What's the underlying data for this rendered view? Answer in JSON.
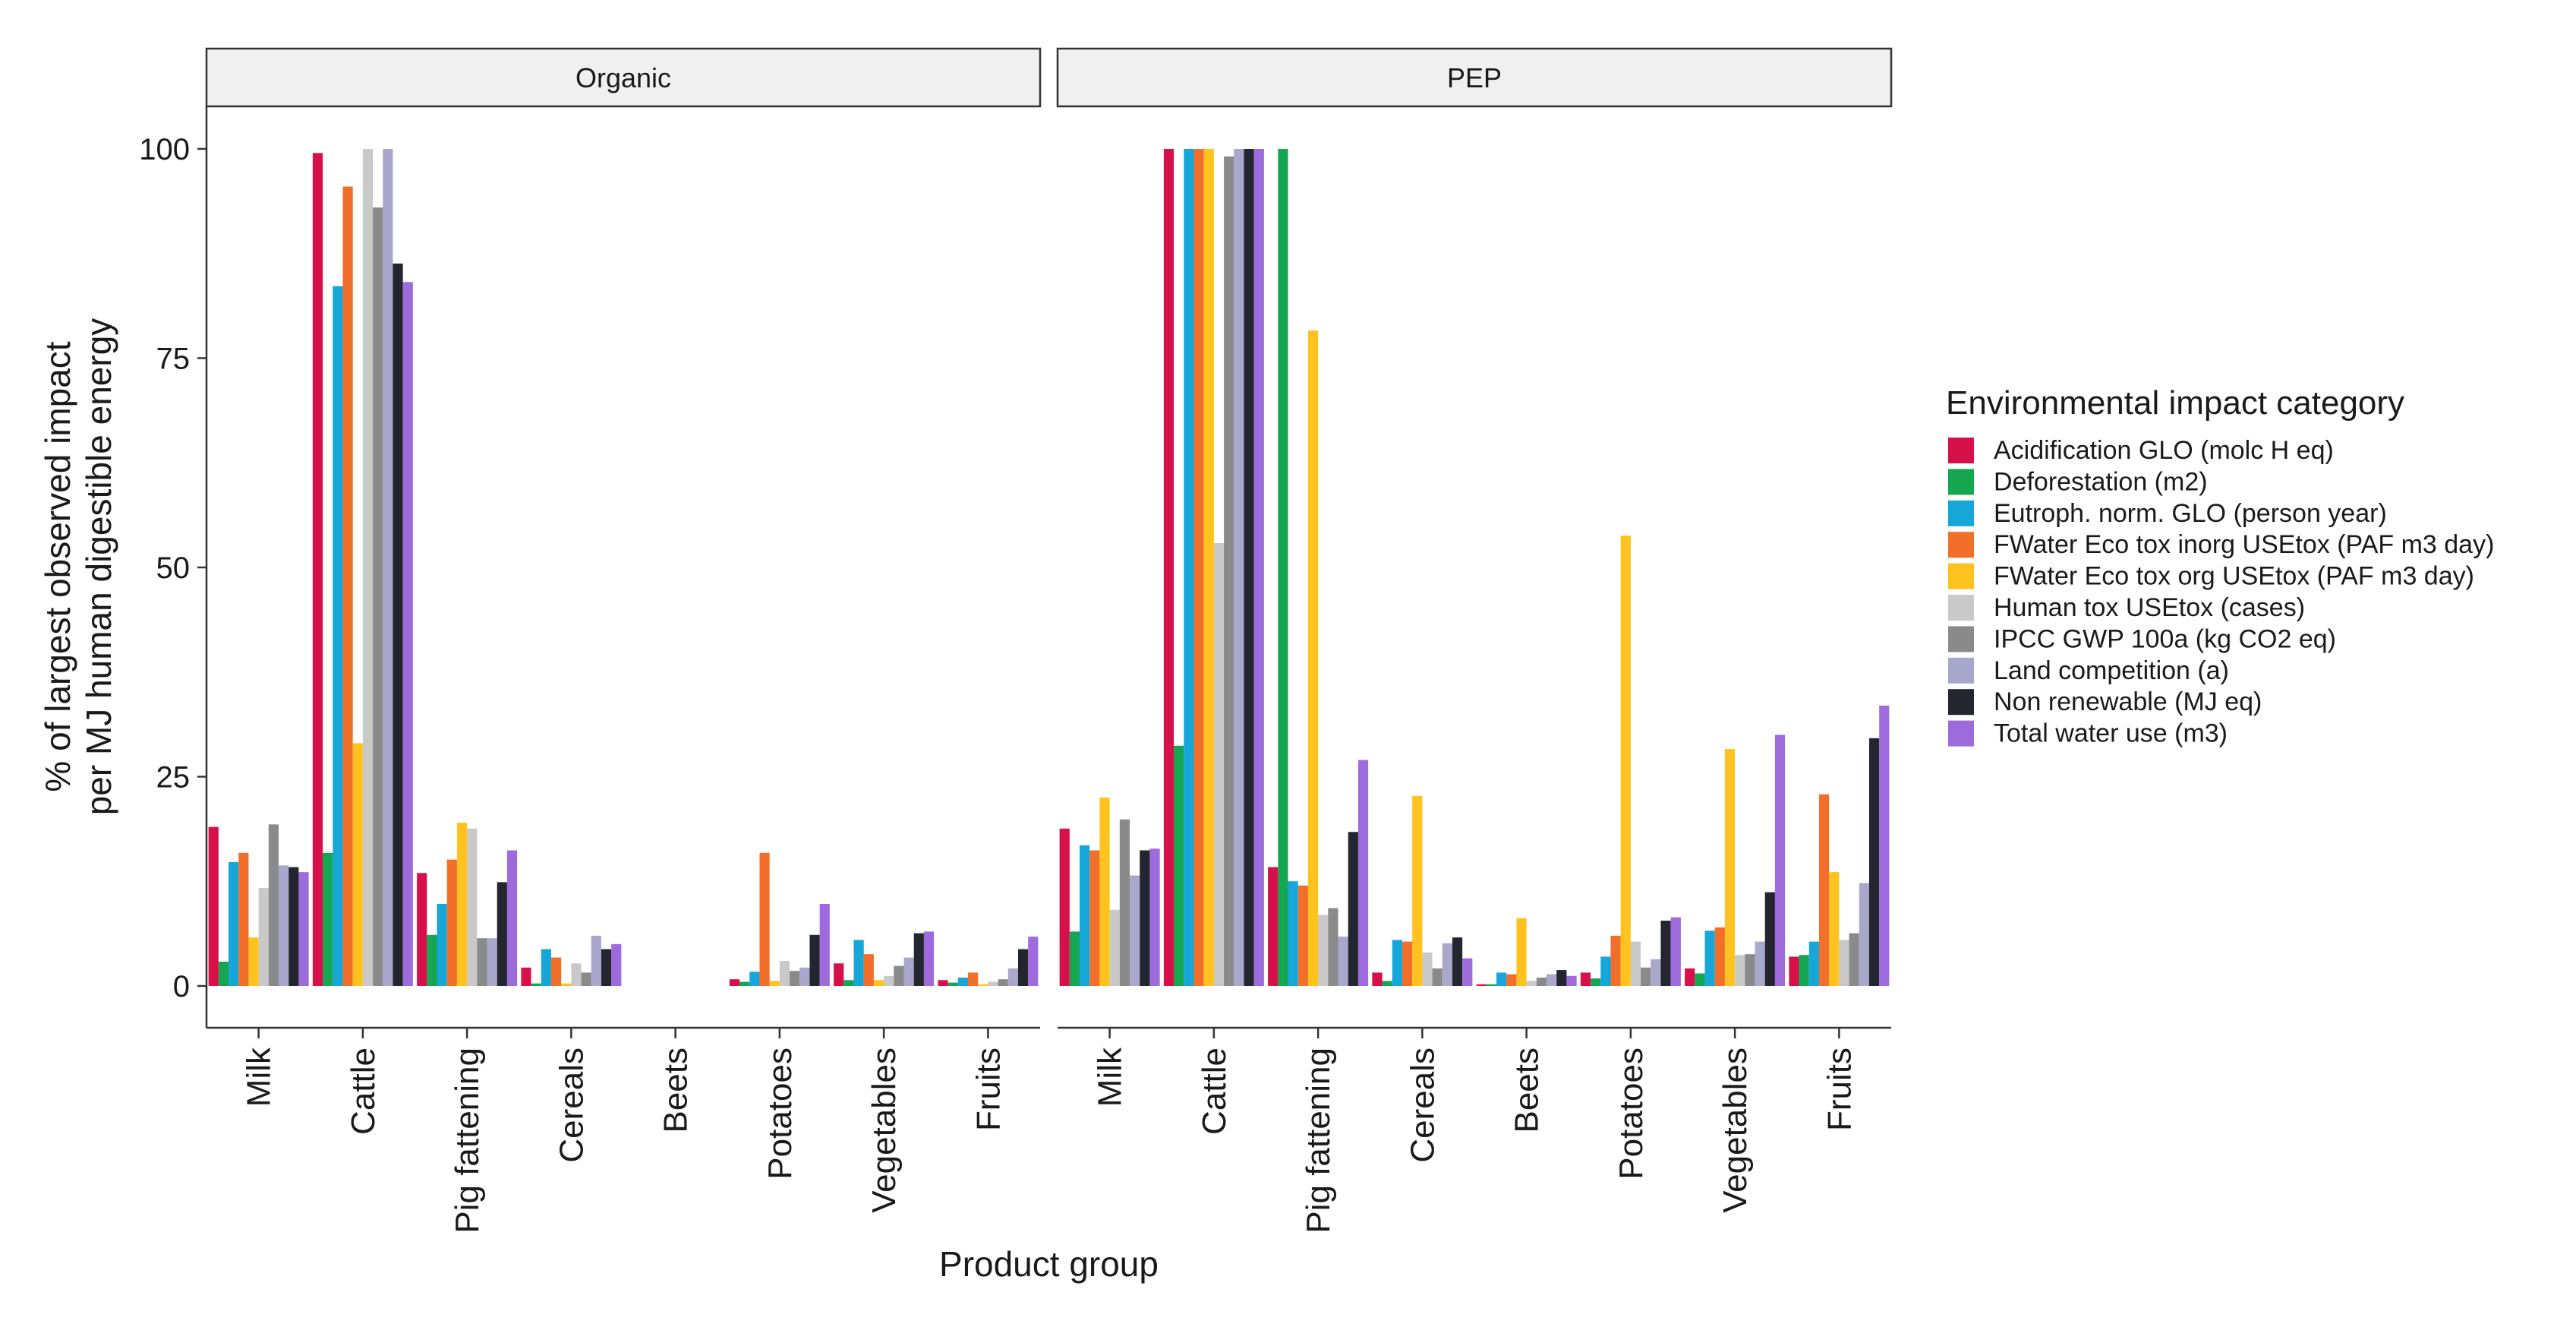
{
  "chart_data": {
    "type": "bar",
    "facets": [
      "Organic",
      "PEP"
    ],
    "categories": [
      "Milk",
      "Cattle",
      "Pig fattening",
      "Cereals",
      "Beets",
      "Potatoes",
      "Vegetables",
      "Fruits"
    ],
    "xlabel": "Product group",
    "ylabel": [
      "% of largest observed impact",
      "per MJ human digestible energy"
    ],
    "ylim": [
      0,
      105
    ],
    "yticks": [
      0,
      25,
      50,
      75,
      100
    ],
    "grid": false,
    "legend": {
      "title": "Environmental impact category",
      "position": "right"
    },
    "series": [
      {
        "name": "Acidification GLO (molc H eq)",
        "color": "#D6114A",
        "values": {
          "Organic": [
            19,
            99.5,
            13.5,
            2.2,
            0,
            0.8,
            2.7,
            0.7
          ],
          "PEP": [
            18.8,
            100,
            14.2,
            1.6,
            0.2,
            1.6,
            2.1,
            3.5
          ]
        }
      },
      {
        "name": "Deforestation (m2)",
        "color": "#14A651",
        "values": {
          "Organic": [
            2.9,
            15.9,
            6.1,
            0.3,
            0,
            0.5,
            0.7,
            0.4
          ],
          "PEP": [
            6.5,
            28.7,
            100,
            0.6,
            0.2,
            0.9,
            1.5,
            3.7
          ]
        }
      },
      {
        "name": "Eutroph. norm. GLO  (person year)",
        "color": "#16A7D8",
        "values": {
          "Organic": [
            14.8,
            83.6,
            9.8,
            4.4,
            0,
            1.7,
            5.5,
            1.0
          ],
          "PEP": [
            16.8,
            100,
            12.5,
            5.5,
            1.6,
            3.5,
            6.6,
            5.3
          ]
        }
      },
      {
        "name": "FWater Eco tox inorg USEtox (PAF m3 day)",
        "color": "#F26E2B",
        "values": {
          "Organic": [
            15.9,
            95.5,
            15.1,
            3.4,
            0,
            15.9,
            3.8,
            1.6
          ],
          "PEP": [
            16.2,
            100,
            12.0,
            5.3,
            1.4,
            6.0,
            7.0,
            22.9
          ]
        }
      },
      {
        "name": "FWater Eco tox org USEtox (PAF m3 day)",
        "color": "#FFC21E",
        "values": {
          "Organic": [
            5.8,
            29.0,
            19.5,
            0.3,
            0,
            0.6,
            0.7,
            0.2
          ],
          "PEP": [
            22.5,
            100,
            78.3,
            22.7,
            8.1,
            53.8,
            28.3,
            13.6
          ]
        }
      },
      {
        "name": "Human tox USEtox  (cases)",
        "color": "#C9C9C9",
        "values": {
          "Organic": [
            11.7,
            100,
            18.8,
            2.7,
            0,
            3.0,
            1.2,
            0.5
          ],
          "PEP": [
            9.1,
            52.9,
            8.5,
            4.0,
            0.6,
            5.3,
            3.7,
            5.5
          ]
        }
      },
      {
        "name": "IPCC GWP 100a (kg CO2 eq)",
        "color": "#8A8A8A",
        "values": {
          "Organic": [
            19.3,
            93.0,
            5.7,
            1.6,
            0,
            1.8,
            2.4,
            0.8
          ],
          "PEP": [
            19.9,
            99.1,
            9.3,
            2.1,
            1.0,
            2.2,
            3.8,
            6.3
          ]
        }
      },
      {
        "name": "Land competition (a)",
        "color": "#A7A8CC",
        "values": {
          "Organic": [
            14.4,
            100,
            5.7,
            6.0,
            0,
            2.2,
            3.4,
            2.1
          ],
          "PEP": [
            13.2,
            100,
            5.9,
            5.1,
            1.4,
            3.2,
            5.3,
            12.3
          ]
        }
      },
      {
        "name": "Non renewable (MJ eq)",
        "color": "#23262F",
        "values": {
          "Organic": [
            14.2,
            86.3,
            12.4,
            4.4,
            0,
            6.1,
            6.3,
            4.4
          ],
          "PEP": [
            16.2,
            100,
            18.4,
            5.8,
            1.9,
            7.8,
            11.2,
            29.6
          ]
        }
      },
      {
        "name": "Total water use (m3)",
        "color": "#9D6BDB",
        "values": {
          "Organic": [
            13.6,
            84.1,
            16.2,
            5.0,
            0,
            9.8,
            6.5,
            5.9
          ],
          "PEP": [
            16.4,
            100,
            27.0,
            3.3,
            1.2,
            8.2,
            30.0,
            33.5
          ]
        }
      }
    ]
  }
}
